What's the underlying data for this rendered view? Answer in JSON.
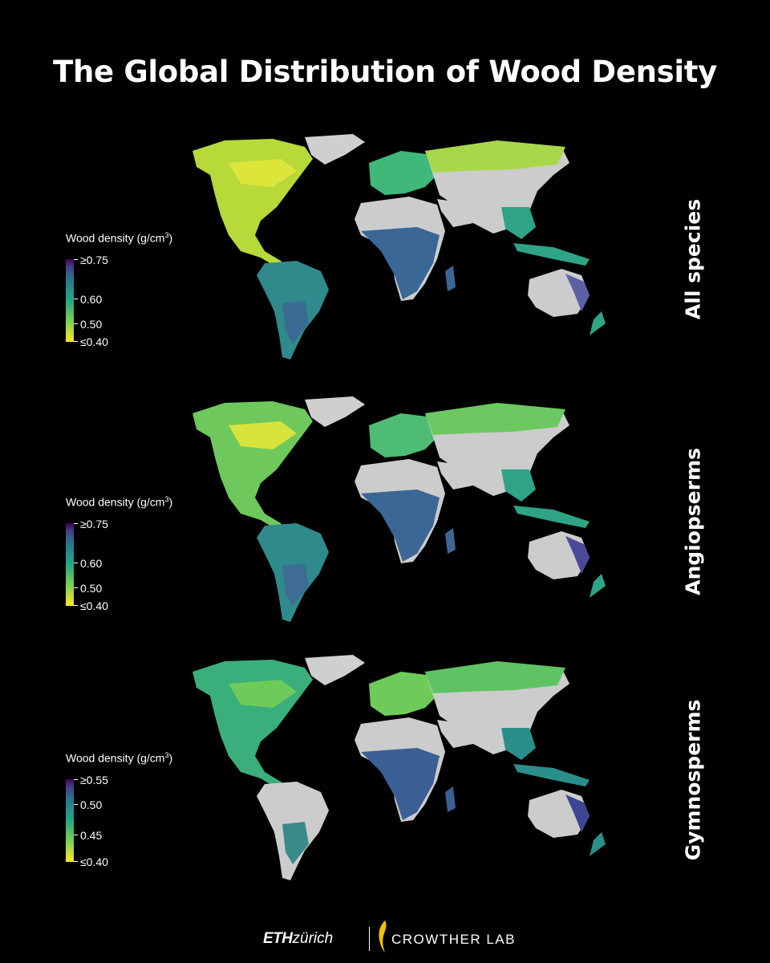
{
  "title": "The Global Distribution of Wood Density",
  "colors": {
    "background": "#000000",
    "land_no_data": "#c9c9c9",
    "viridis_low": "#f0e51f",
    "viridis_mid": "#22a884",
    "viridis_high": "#440154",
    "flame": "#f2c200"
  },
  "panels": [
    {
      "label": "All species",
      "legend_title": "Wood density (g/cm",
      "legend_title_sup": "3",
      "legend_title_end": ")",
      "ticks": [
        {
          "label": "≥0.75",
          "value": 0.75
        },
        {
          "label": "0.60",
          "value": 0.6
        },
        {
          "label": "0.50",
          "value": 0.5
        },
        {
          "label": "≤0.40",
          "value": 0.4
        }
      ]
    },
    {
      "label": "Angiopserms",
      "legend_title": "Wood density (g/cm",
      "legend_title_sup": "3",
      "legend_title_end": ")",
      "ticks": [
        {
          "label": "≥0.75",
          "value": 0.75
        },
        {
          "label": "0.60",
          "value": 0.6
        },
        {
          "label": "0.50",
          "value": 0.5
        },
        {
          "label": "≤0.40",
          "value": 0.4
        }
      ]
    },
    {
      "label": "Gymnosperms",
      "legend_title": "Wood density (g/cm",
      "legend_title_sup": "3",
      "legend_title_end": ")",
      "ticks": [
        {
          "label": "≥0.55",
          "value": 0.55
        },
        {
          "label": "0.50",
          "value": 0.5
        },
        {
          "label": "0.45",
          "value": 0.45
        },
        {
          "label": "≤0.40",
          "value": 0.4
        }
      ]
    }
  ],
  "footer": {
    "eth_bold": "ETH",
    "eth_rest": "zürich",
    "crowther": "CROWTHER LAB"
  }
}
